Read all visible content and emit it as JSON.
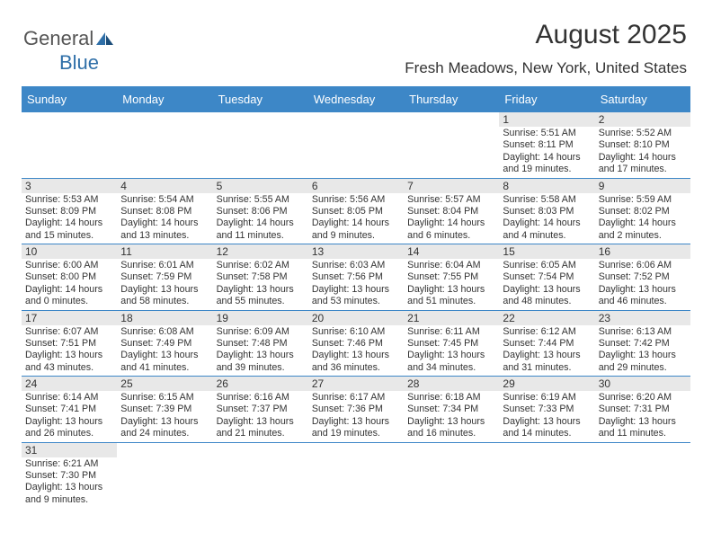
{
  "brand": {
    "part1": "General",
    "part2": "Blue"
  },
  "title": "August 2025",
  "location": "Fresh Meadows, New York, United States",
  "colors": {
    "header_bg": "#3d87c7",
    "header_text": "#ffffff",
    "daynum_bg": "#e8e8e8",
    "border": "#3d87c7",
    "text": "#333333",
    "brand_blue": "#2f6fa8",
    "brand_gray": "#555555",
    "background": "#ffffff"
  },
  "typography": {
    "title_fontsize": 30,
    "subtitle_fontsize": 17,
    "header_fontsize": 13,
    "cell_fontsize": 10.7,
    "daynum_fontsize": 12,
    "logo_fontsize": 22
  },
  "day_names": [
    "Sunday",
    "Monday",
    "Tuesday",
    "Wednesday",
    "Thursday",
    "Friday",
    "Saturday"
  ],
  "weeks": [
    [
      {
        "day": "",
        "sunrise": "",
        "sunset": "",
        "daylight": ""
      },
      {
        "day": "",
        "sunrise": "",
        "sunset": "",
        "daylight": ""
      },
      {
        "day": "",
        "sunrise": "",
        "sunset": "",
        "daylight": ""
      },
      {
        "day": "",
        "sunrise": "",
        "sunset": "",
        "daylight": ""
      },
      {
        "day": "",
        "sunrise": "",
        "sunset": "",
        "daylight": ""
      },
      {
        "day": "1",
        "sunrise": "Sunrise: 5:51 AM",
        "sunset": "Sunset: 8:11 PM",
        "daylight": "Daylight: 14 hours and 19 minutes."
      },
      {
        "day": "2",
        "sunrise": "Sunrise: 5:52 AM",
        "sunset": "Sunset: 8:10 PM",
        "daylight": "Daylight: 14 hours and 17 minutes."
      }
    ],
    [
      {
        "day": "3",
        "sunrise": "Sunrise: 5:53 AM",
        "sunset": "Sunset: 8:09 PM",
        "daylight": "Daylight: 14 hours and 15 minutes."
      },
      {
        "day": "4",
        "sunrise": "Sunrise: 5:54 AM",
        "sunset": "Sunset: 8:08 PM",
        "daylight": "Daylight: 14 hours and 13 minutes."
      },
      {
        "day": "5",
        "sunrise": "Sunrise: 5:55 AM",
        "sunset": "Sunset: 8:06 PM",
        "daylight": "Daylight: 14 hours and 11 minutes."
      },
      {
        "day": "6",
        "sunrise": "Sunrise: 5:56 AM",
        "sunset": "Sunset: 8:05 PM",
        "daylight": "Daylight: 14 hours and 9 minutes."
      },
      {
        "day": "7",
        "sunrise": "Sunrise: 5:57 AM",
        "sunset": "Sunset: 8:04 PM",
        "daylight": "Daylight: 14 hours and 6 minutes."
      },
      {
        "day": "8",
        "sunrise": "Sunrise: 5:58 AM",
        "sunset": "Sunset: 8:03 PM",
        "daylight": "Daylight: 14 hours and 4 minutes."
      },
      {
        "day": "9",
        "sunrise": "Sunrise: 5:59 AM",
        "sunset": "Sunset: 8:02 PM",
        "daylight": "Daylight: 14 hours and 2 minutes."
      }
    ],
    [
      {
        "day": "10",
        "sunrise": "Sunrise: 6:00 AM",
        "sunset": "Sunset: 8:00 PM",
        "daylight": "Daylight: 14 hours and 0 minutes."
      },
      {
        "day": "11",
        "sunrise": "Sunrise: 6:01 AM",
        "sunset": "Sunset: 7:59 PM",
        "daylight": "Daylight: 13 hours and 58 minutes."
      },
      {
        "day": "12",
        "sunrise": "Sunrise: 6:02 AM",
        "sunset": "Sunset: 7:58 PM",
        "daylight": "Daylight: 13 hours and 55 minutes."
      },
      {
        "day": "13",
        "sunrise": "Sunrise: 6:03 AM",
        "sunset": "Sunset: 7:56 PM",
        "daylight": "Daylight: 13 hours and 53 minutes."
      },
      {
        "day": "14",
        "sunrise": "Sunrise: 6:04 AM",
        "sunset": "Sunset: 7:55 PM",
        "daylight": "Daylight: 13 hours and 51 minutes."
      },
      {
        "day": "15",
        "sunrise": "Sunrise: 6:05 AM",
        "sunset": "Sunset: 7:54 PM",
        "daylight": "Daylight: 13 hours and 48 minutes."
      },
      {
        "day": "16",
        "sunrise": "Sunrise: 6:06 AM",
        "sunset": "Sunset: 7:52 PM",
        "daylight": "Daylight: 13 hours and 46 minutes."
      }
    ],
    [
      {
        "day": "17",
        "sunrise": "Sunrise: 6:07 AM",
        "sunset": "Sunset: 7:51 PM",
        "daylight": "Daylight: 13 hours and 43 minutes."
      },
      {
        "day": "18",
        "sunrise": "Sunrise: 6:08 AM",
        "sunset": "Sunset: 7:49 PM",
        "daylight": "Daylight: 13 hours and 41 minutes."
      },
      {
        "day": "19",
        "sunrise": "Sunrise: 6:09 AM",
        "sunset": "Sunset: 7:48 PM",
        "daylight": "Daylight: 13 hours and 39 minutes."
      },
      {
        "day": "20",
        "sunrise": "Sunrise: 6:10 AM",
        "sunset": "Sunset: 7:46 PM",
        "daylight": "Daylight: 13 hours and 36 minutes."
      },
      {
        "day": "21",
        "sunrise": "Sunrise: 6:11 AM",
        "sunset": "Sunset: 7:45 PM",
        "daylight": "Daylight: 13 hours and 34 minutes."
      },
      {
        "day": "22",
        "sunrise": "Sunrise: 6:12 AM",
        "sunset": "Sunset: 7:44 PM",
        "daylight": "Daylight: 13 hours and 31 minutes."
      },
      {
        "day": "23",
        "sunrise": "Sunrise: 6:13 AM",
        "sunset": "Sunset: 7:42 PM",
        "daylight": "Daylight: 13 hours and 29 minutes."
      }
    ],
    [
      {
        "day": "24",
        "sunrise": "Sunrise: 6:14 AM",
        "sunset": "Sunset: 7:41 PM",
        "daylight": "Daylight: 13 hours and 26 minutes."
      },
      {
        "day": "25",
        "sunrise": "Sunrise: 6:15 AM",
        "sunset": "Sunset: 7:39 PM",
        "daylight": "Daylight: 13 hours and 24 minutes."
      },
      {
        "day": "26",
        "sunrise": "Sunrise: 6:16 AM",
        "sunset": "Sunset: 7:37 PM",
        "daylight": "Daylight: 13 hours and 21 minutes."
      },
      {
        "day": "27",
        "sunrise": "Sunrise: 6:17 AM",
        "sunset": "Sunset: 7:36 PM",
        "daylight": "Daylight: 13 hours and 19 minutes."
      },
      {
        "day": "28",
        "sunrise": "Sunrise: 6:18 AM",
        "sunset": "Sunset: 7:34 PM",
        "daylight": "Daylight: 13 hours and 16 minutes."
      },
      {
        "day": "29",
        "sunrise": "Sunrise: 6:19 AM",
        "sunset": "Sunset: 7:33 PM",
        "daylight": "Daylight: 13 hours and 14 minutes."
      },
      {
        "day": "30",
        "sunrise": "Sunrise: 6:20 AM",
        "sunset": "Sunset: 7:31 PM",
        "daylight": "Daylight: 13 hours and 11 minutes."
      }
    ],
    [
      {
        "day": "31",
        "sunrise": "Sunrise: 6:21 AM",
        "sunset": "Sunset: 7:30 PM",
        "daylight": "Daylight: 13 hours and 9 minutes."
      },
      {
        "day": "",
        "sunrise": "",
        "sunset": "",
        "daylight": ""
      },
      {
        "day": "",
        "sunrise": "",
        "sunset": "",
        "daylight": ""
      },
      {
        "day": "",
        "sunrise": "",
        "sunset": "",
        "daylight": ""
      },
      {
        "day": "",
        "sunrise": "",
        "sunset": "",
        "daylight": ""
      },
      {
        "day": "",
        "sunrise": "",
        "sunset": "",
        "daylight": ""
      },
      {
        "day": "",
        "sunrise": "",
        "sunset": "",
        "daylight": ""
      }
    ]
  ]
}
